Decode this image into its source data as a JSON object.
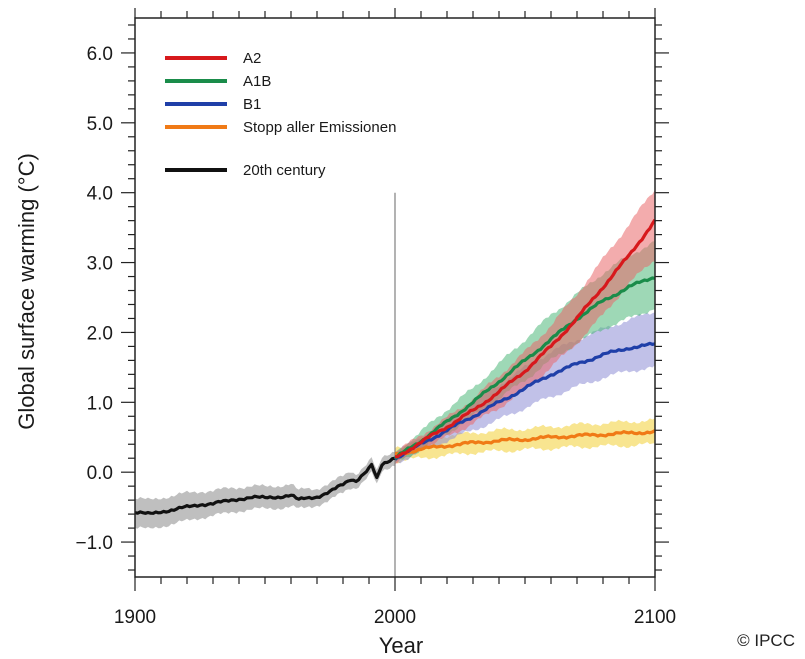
{
  "chart_data": {
    "type": "line",
    "title": "",
    "xlabel": "Year",
    "ylabel": "Global surface warming (°C)",
    "xlim": [
      1900,
      2100
    ],
    "ylim": [
      -1.5,
      6.5
    ],
    "x_ticks": [
      1900,
      2000,
      2100
    ],
    "x_tick_labels": [
      "1900",
      "2000",
      "2100"
    ],
    "y_ticks": [
      -1.0,
      0.0,
      1.0,
      2.0,
      3.0,
      4.0,
      5.0,
      6.0
    ],
    "y_tick_labels": [
      "−1.0",
      "0.0",
      "1.0",
      "2.0",
      "3.0",
      "4.0",
      "5.0",
      "6.0"
    ],
    "grid": false,
    "legend_position": "top-left",
    "reference_line": {
      "x": 2000,
      "y_from": -1.5,
      "y_to": 4.0,
      "color": "#808080"
    },
    "series": [
      {
        "name": "A2",
        "color": "#d7191c",
        "band_color": "#e9676a",
        "x": [
          2000,
          2010,
          2020,
          2030,
          2040,
          2050,
          2060,
          2070,
          2080,
          2090,
          2100
        ],
        "values": [
          0.2,
          0.43,
          0.65,
          0.88,
          1.15,
          1.45,
          1.8,
          2.2,
          2.65,
          3.1,
          3.6
        ],
        "lower": [
          0.12,
          0.33,
          0.5,
          0.7,
          0.92,
          1.18,
          1.5,
          1.85,
          2.25,
          2.7,
          3.05
        ],
        "upper": [
          0.28,
          0.53,
          0.78,
          1.05,
          1.38,
          1.72,
          2.1,
          2.55,
          3.05,
          3.55,
          4.05
        ]
      },
      {
        "name": "A1B",
        "color": "#1a8c4a",
        "band_color": "#4fb87a",
        "x": [
          2000,
          2010,
          2020,
          2030,
          2040,
          2050,
          2060,
          2070,
          2080,
          2090,
          2100
        ],
        "values": [
          0.2,
          0.45,
          0.72,
          1.0,
          1.3,
          1.6,
          1.9,
          2.2,
          2.45,
          2.65,
          2.8
        ],
        "lower": [
          0.12,
          0.33,
          0.55,
          0.8,
          1.05,
          1.32,
          1.6,
          1.85,
          2.05,
          2.2,
          2.35
        ],
        "upper": [
          0.28,
          0.58,
          0.9,
          1.2,
          1.55,
          1.9,
          2.25,
          2.55,
          2.85,
          3.1,
          3.3
        ]
      },
      {
        "name": "B1",
        "color": "#1f3fa8",
        "band_color": "#8e8ed6",
        "x": [
          2000,
          2010,
          2020,
          2030,
          2040,
          2050,
          2060,
          2070,
          2080,
          2090,
          2100
        ],
        "values": [
          0.2,
          0.4,
          0.6,
          0.8,
          1.0,
          1.2,
          1.4,
          1.55,
          1.68,
          1.78,
          1.83
        ],
        "lower": [
          0.12,
          0.3,
          0.45,
          0.6,
          0.75,
          0.92,
          1.08,
          1.22,
          1.35,
          1.45,
          1.5
        ],
        "upper": [
          0.28,
          0.5,
          0.75,
          1.0,
          1.25,
          1.5,
          1.72,
          1.9,
          2.05,
          2.18,
          2.3
        ]
      },
      {
        "name": "Stopp aller Emissionen",
        "color": "#f07a16",
        "band_color": "#f2d034",
        "x": [
          2000,
          2010,
          2020,
          2030,
          2040,
          2050,
          2060,
          2070,
          2080,
          2090,
          2100
        ],
        "values": [
          0.25,
          0.33,
          0.38,
          0.42,
          0.45,
          0.47,
          0.5,
          0.52,
          0.54,
          0.56,
          0.58
        ],
        "lower": [
          0.15,
          0.2,
          0.24,
          0.28,
          0.3,
          0.32,
          0.34,
          0.36,
          0.37,
          0.38,
          0.4
        ],
        "upper": [
          0.35,
          0.47,
          0.52,
          0.56,
          0.6,
          0.62,
          0.65,
          0.68,
          0.7,
          0.72,
          0.75
        ]
      },
      {
        "name": "20th century",
        "color": "#111111",
        "band_color": "#8a8a8a",
        "x": [
          1900,
          1905,
          1910,
          1915,
          1920,
          1925,
          1930,
          1935,
          1940,
          1945,
          1950,
          1955,
          1960,
          1963,
          1965,
          1970,
          1975,
          1980,
          1983,
          1985,
          1990,
          1991,
          1993,
          1995,
          2000
        ],
        "values": [
          -0.58,
          -0.6,
          -0.56,
          -0.54,
          -0.5,
          -0.46,
          -0.45,
          -0.42,
          -0.38,
          -0.36,
          -0.37,
          -0.35,
          -0.33,
          -0.4,
          -0.38,
          -0.35,
          -0.28,
          -0.18,
          -0.1,
          -0.12,
          0.05,
          0.1,
          -0.1,
          0.1,
          0.22
        ],
        "lower": [
          -0.8,
          -0.82,
          -0.77,
          -0.74,
          -0.7,
          -0.65,
          -0.62,
          -0.6,
          -0.55,
          -0.53,
          -0.53,
          -0.51,
          -0.49,
          -0.53,
          -0.52,
          -0.47,
          -0.4,
          -0.3,
          -0.22,
          -0.22,
          -0.05,
          0.0,
          -0.2,
          0.0,
          0.12
        ],
        "upper": [
          -0.38,
          -0.4,
          -0.36,
          -0.34,
          -0.3,
          -0.27,
          -0.27,
          -0.24,
          -0.21,
          -0.2,
          -0.21,
          -0.19,
          -0.17,
          -0.27,
          -0.24,
          -0.23,
          -0.16,
          -0.06,
          0.02,
          -0.02,
          0.15,
          0.2,
          0.0,
          0.2,
          0.32
        ]
      }
    ]
  },
  "credit": "© IPCC"
}
